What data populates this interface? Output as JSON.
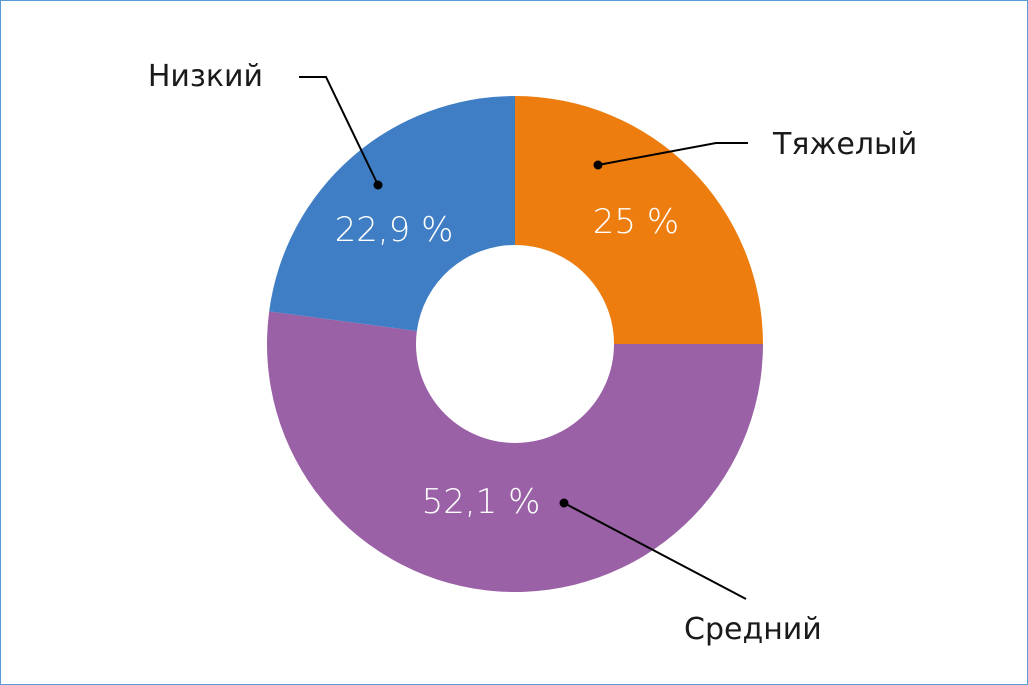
{
  "chart_data": {
    "type": "pie",
    "title": "",
    "slices": [
      {
        "label": "Тяжелый",
        "value": 25,
        "value_label": "25 %",
        "color": "#ed7d0e"
      },
      {
        "label": "Средний",
        "value": 52.1,
        "value_label": "52,1 %",
        "color": "#9a61a6"
      },
      {
        "label": "Низкий",
        "value": 22.9,
        "value_label": "22,9 %",
        "color": "#3f7ec4"
      }
    ],
    "donut": true,
    "legend": "none"
  }
}
